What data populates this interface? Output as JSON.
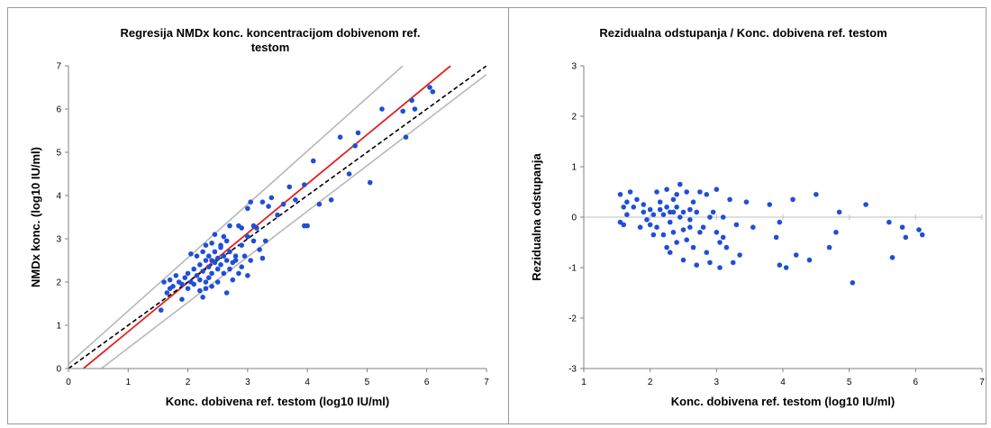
{
  "chart_data": [
    {
      "type": "scatter",
      "title_lines": [
        "Regresija NMDx konc. koncentracijom dobivenom ref.",
        "testom"
      ],
      "xlabel": "Konc. dobivena ref. testom (log10 IU/ml)",
      "ylabel": "NMDx konc. (log10 IU/ml)",
      "xlim": [
        0,
        7
      ],
      "ylim": [
        0,
        7
      ],
      "xticks": [
        "0",
        "1",
        "2",
        "3",
        "4",
        "5",
        "6",
        "7"
      ],
      "yticks": [
        "0",
        "1",
        "2",
        "3",
        "4",
        "5",
        "6",
        "7"
      ],
      "grid": false,
      "point_color": "#1f4fd6",
      "lines": [
        {
          "style": "regression",
          "color": "#e02020",
          "x": [
            0.25,
            6.4
          ],
          "y": [
            0,
            7
          ]
        },
        {
          "style": "identity",
          "color": "#000000",
          "dashed": true,
          "x": [
            0,
            7
          ],
          "y": [
            0,
            7
          ]
        },
        {
          "style": "upper-bound",
          "color": "#b8b8b8",
          "x": [
            0,
            5.6
          ],
          "y": [
            0.1,
            7
          ]
        },
        {
          "style": "lower-bound",
          "color": "#b8b8b8",
          "x": [
            0.55,
            7
          ],
          "y": [
            0,
            6.8
          ]
        }
      ],
      "points": [
        [
          1.55,
          1.35
        ],
        [
          1.6,
          2.0
        ],
        [
          1.65,
          1.75
        ],
        [
          1.7,
          1.85
        ],
        [
          1.7,
          2.05
        ],
        [
          1.75,
          1.9
        ],
        [
          1.8,
          2.15
        ],
        [
          1.85,
          2.0
        ],
        [
          1.9,
          1.95
        ],
        [
          1.9,
          1.6
        ],
        [
          1.95,
          2.1
        ],
        [
          2.0,
          1.85
        ],
        [
          2.0,
          2.2
        ],
        [
          2.05,
          2.0
        ],
        [
          2.1,
          2.3
        ],
        [
          2.1,
          1.95
        ],
        [
          2.15,
          2.15
        ],
        [
          2.15,
          2.6
        ],
        [
          2.2,
          1.8
        ],
        [
          2.2,
          2.4
        ],
        [
          2.25,
          2.25
        ],
        [
          2.25,
          1.65
        ],
        [
          2.25,
          2.7
        ],
        [
          2.3,
          2.0
        ],
        [
          2.3,
          2.5
        ],
        [
          2.3,
          2.85
        ],
        [
          2.35,
          2.1
        ],
        [
          2.35,
          2.35
        ],
        [
          2.35,
          2.6
        ],
        [
          2.4,
          2.9
        ],
        [
          2.4,
          2.2
        ],
        [
          2.4,
          1.9
        ],
        [
          2.45,
          2.45
        ],
        [
          2.45,
          2.7
        ],
        [
          2.45,
          3.1
        ],
        [
          2.5,
          2.3
        ],
        [
          2.5,
          2.55
        ],
        [
          2.5,
          2.0
        ],
        [
          2.55,
          2.4
        ],
        [
          2.55,
          2.85
        ],
        [
          2.6,
          2.6
        ],
        [
          2.6,
          2.2
        ],
        [
          2.6,
          3.05
        ],
        [
          2.65,
          2.5
        ],
        [
          2.65,
          1.75
        ],
        [
          2.7,
          2.3
        ],
        [
          2.7,
          2.7
        ],
        [
          2.7,
          3.3
        ],
        [
          2.75,
          2.45
        ],
        [
          2.75,
          2.05
        ],
        [
          2.8,
          2.6
        ],
        [
          2.85,
          3.3
        ],
        [
          2.85,
          2.2
        ],
        [
          2.9,
          2.85
        ],
        [
          2.9,
          3.25
        ],
        [
          2.95,
          2.6
        ],
        [
          3.0,
          3.05
        ],
        [
          3.0,
          3.7
        ],
        [
          3.0,
          2.15
        ],
        [
          3.05,
          3.85
        ],
        [
          3.05,
          2.5
        ],
        [
          3.1,
          2.95
        ],
        [
          3.15,
          3.25
        ],
        [
          3.2,
          2.75
        ],
        [
          3.25,
          3.85
        ],
        [
          3.25,
          2.55
        ],
        [
          3.3,
          2.95
        ],
        [
          3.35,
          3.75
        ],
        [
          3.4,
          3.95
        ],
        [
          3.5,
          3.55
        ],
        [
          3.6,
          3.8
        ],
        [
          3.7,
          4.2
        ],
        [
          3.8,
          3.9
        ],
        [
          3.95,
          3.3
        ],
        [
          3.95,
          4.25
        ],
        [
          4.0,
          3.3
        ],
        [
          4.1,
          4.8
        ],
        [
          4.2,
          3.8
        ],
        [
          4.4,
          3.9
        ],
        [
          4.55,
          5.35
        ],
        [
          4.7,
          4.5
        ],
        [
          4.8,
          5.15
        ],
        [
          4.85,
          5.45
        ],
        [
          5.05,
          4.3
        ],
        [
          5.25,
          6.0
        ],
        [
          5.6,
          5.95
        ],
        [
          5.65,
          5.35
        ],
        [
          5.75,
          6.2
        ],
        [
          5.8,
          6.0
        ],
        [
          6.05,
          6.5
        ],
        [
          6.1,
          6.4
        ],
        [
          2.05,
          2.65
        ],
        [
          2.3,
          1.85
        ],
        [
          2.55,
          2.8
        ],
        [
          2.8,
          2.5
        ],
        [
          2.2,
          2.05
        ],
        [
          2.4,
          2.5
        ],
        [
          2.65,
          2.95
        ],
        [
          2.9,
          2.35
        ],
        [
          3.1,
          3.3
        ]
      ]
    },
    {
      "type": "scatter",
      "title_lines": [
        "Rezidualna odstupanja / Konc. dobivena ref. testom"
      ],
      "xlabel": "Konc. dobivena ref. testom (log10 IU/ml)",
      "ylabel": "Rezidualna odstupanja",
      "xlim": [
        1,
        7
      ],
      "ylim": [
        -3,
        3
      ],
      "xticks": [
        "1",
        "2",
        "3",
        "4",
        "5",
        "6",
        "7"
      ],
      "yticks": [
        "-3",
        "-2",
        "-1",
        "0",
        "1",
        "2",
        "3"
      ],
      "grid": false,
      "point_color": "#1f4fd6",
      "zero_line": true,
      "points": [
        [
          1.55,
          -0.1
        ],
        [
          1.55,
          0.45
        ],
        [
          1.6,
          0.2
        ],
        [
          1.65,
          0.3
        ],
        [
          1.65,
          0.05
        ],
        [
          1.7,
          0.5
        ],
        [
          1.75,
          0.2
        ],
        [
          1.8,
          0.35
        ],
        [
          1.85,
          -0.2
        ],
        [
          1.9,
          0.1
        ],
        [
          1.95,
          -0.05
        ],
        [
          2.0,
          0.15
        ],
        [
          2.0,
          -0.15
        ],
        [
          2.05,
          0.05
        ],
        [
          2.1,
          0.5
        ],
        [
          2.1,
          -0.2
        ],
        [
          2.15,
          0.15
        ],
        [
          2.15,
          0.3
        ],
        [
          2.2,
          -0.35
        ],
        [
          2.2,
          0.05
        ],
        [
          2.25,
          -0.6
        ],
        [
          2.25,
          0.2
        ],
        [
          2.25,
          0.55
        ],
        [
          2.3,
          -0.1
        ],
        [
          2.3,
          0.1
        ],
        [
          2.3,
          -0.7
        ],
        [
          2.35,
          0.35
        ],
        [
          2.35,
          -0.3
        ],
        [
          2.4,
          0.2
        ],
        [
          2.4,
          -0.5
        ],
        [
          2.4,
          0.45
        ],
        [
          2.45,
          0.0
        ],
        [
          2.45,
          0.65
        ],
        [
          2.5,
          -0.25
        ],
        [
          2.5,
          0.1
        ],
        [
          2.5,
          -0.85
        ],
        [
          2.55,
          0.5
        ],
        [
          2.55,
          -0.45
        ],
        [
          2.6,
          0.15
        ],
        [
          2.6,
          -0.05
        ],
        [
          2.65,
          -0.6
        ],
        [
          2.65,
          0.3
        ],
        [
          2.7,
          -0.95
        ],
        [
          2.7,
          0.1
        ],
        [
          2.75,
          -0.3
        ],
        [
          2.75,
          0.5
        ],
        [
          2.8,
          -0.2
        ],
        [
          2.85,
          0.45
        ],
        [
          2.85,
          -0.7
        ],
        [
          2.9,
          -0.9
        ],
        [
          2.95,
          0.1
        ],
        [
          3.0,
          -0.3
        ],
        [
          3.0,
          0.55
        ],
        [
          3.05,
          -0.5
        ],
        [
          3.05,
          -1.0
        ],
        [
          3.1,
          0.0
        ],
        [
          3.15,
          -0.6
        ],
        [
          3.2,
          0.35
        ],
        [
          3.25,
          -0.9
        ],
        [
          3.3,
          -0.15
        ],
        [
          3.35,
          -0.75
        ],
        [
          3.45,
          0.3
        ],
        [
          3.55,
          -0.2
        ],
        [
          3.8,
          0.25
        ],
        [
          3.9,
          -0.4
        ],
        [
          3.95,
          -0.1
        ],
        [
          3.95,
          -0.95
        ],
        [
          4.05,
          -1.0
        ],
        [
          4.15,
          0.35
        ],
        [
          4.2,
          -0.75
        ],
        [
          4.4,
          -0.85
        ],
        [
          4.5,
          0.45
        ],
        [
          4.7,
          -0.6
        ],
        [
          4.8,
          -0.3
        ],
        [
          4.85,
          0.1
        ],
        [
          5.05,
          -1.3
        ],
        [
          5.25,
          0.25
        ],
        [
          5.6,
          -0.1
        ],
        [
          5.65,
          -0.8
        ],
        [
          5.8,
          -0.2
        ],
        [
          5.85,
          -0.4
        ],
        [
          6.05,
          -0.25
        ],
        [
          6.1,
          -0.35
        ],
        [
          1.6,
          -0.15
        ],
        [
          1.9,
          0.25
        ],
        [
          2.05,
          -0.35
        ],
        [
          2.35,
          0.1
        ],
        [
          2.6,
          -0.2
        ],
        [
          2.9,
          0.0
        ],
        [
          3.1,
          -0.4
        ]
      ]
    }
  ]
}
